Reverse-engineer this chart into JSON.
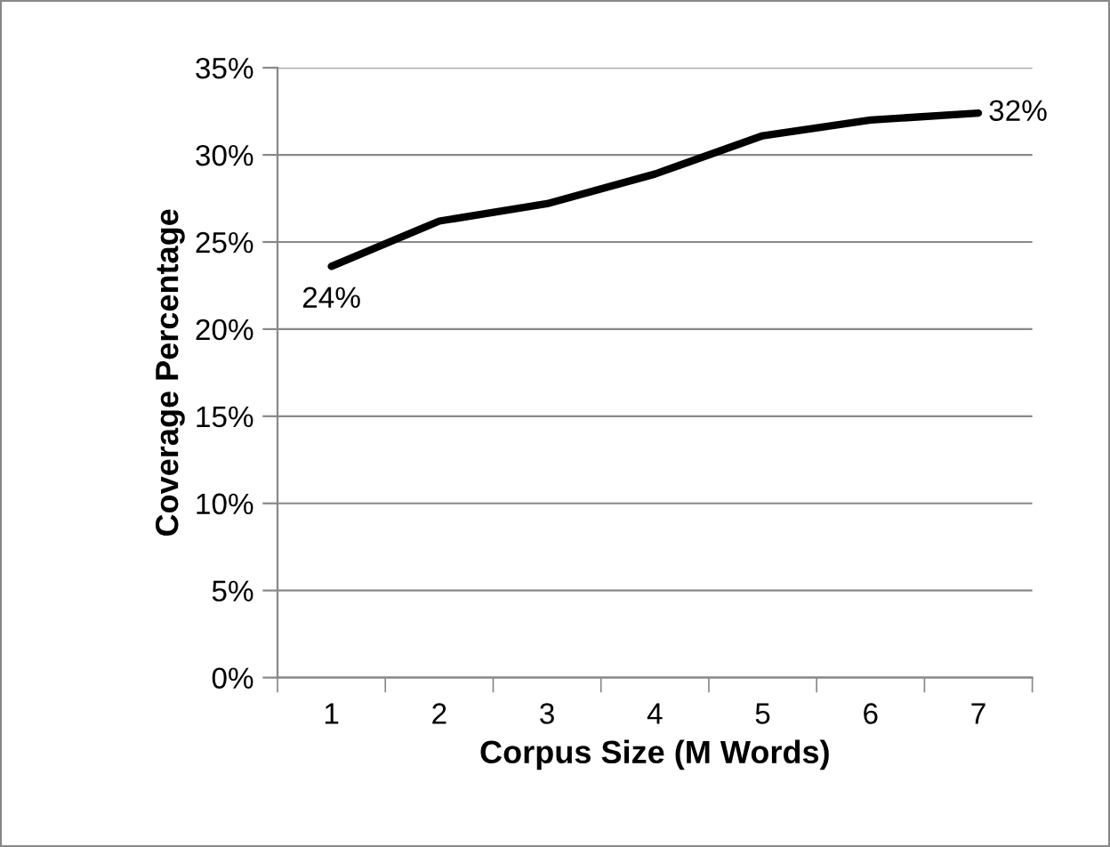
{
  "chart_data": {
    "type": "line",
    "xlabel": "Corpus Size (M Words)",
    "ylabel": "Coverage Percentage",
    "categories": [
      "1",
      "2",
      "3",
      "4",
      "5",
      "6",
      "7"
    ],
    "series": [
      {
        "color": "#000000",
        "values": [
          23.6,
          26.2,
          27.2,
          28.9,
          31.1,
          32.0,
          32.4
        ],
        "value_labels": [
          "24%",
          null,
          null,
          null,
          null,
          null,
          "32%"
        ]
      }
    ],
    "ylim": [
      0,
      35
    ],
    "yticks": [
      {
        "value": 0,
        "label": "0%"
      },
      {
        "value": 5,
        "label": "5%"
      },
      {
        "value": 10,
        "label": "10%"
      },
      {
        "value": 15,
        "label": "15%"
      },
      {
        "value": 20,
        "label": "20%"
      },
      {
        "value": 25,
        "label": "25%"
      },
      {
        "value": 30,
        "label": "30%"
      },
      {
        "value": 35,
        "label": "35%"
      }
    ],
    "grid": "y",
    "legend": false,
    "marker": "none",
    "line_style": "solid"
  }
}
